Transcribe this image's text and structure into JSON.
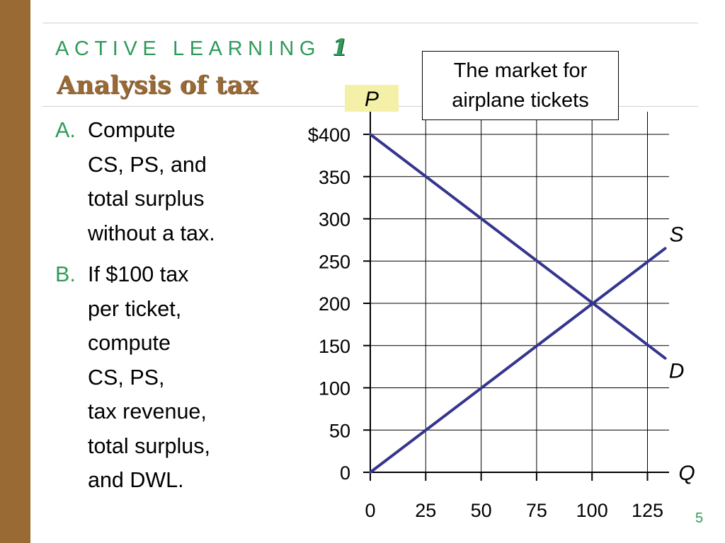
{
  "slide": {
    "kicker_text": "ACTIVE LEARNING",
    "kicker_number": "1",
    "title": "Analysis of tax",
    "page_number": "5"
  },
  "questions": [
    {
      "label": "A.",
      "lines": [
        "Compute",
        "CS, PS, and",
        "total surplus",
        "without a tax."
      ]
    },
    {
      "label": "B.",
      "lines": [
        "If $100 tax",
        "per ticket,",
        "compute",
        "CS, PS,",
        "tax revenue,",
        "total surplus,",
        "and DWL."
      ]
    }
  ],
  "chart_data": {
    "type": "line",
    "title_lines": [
      "The market for",
      "airplane tickets"
    ],
    "ylabel": "P",
    "xlabel": "Q",
    "x_ticks": [
      "0",
      "25",
      "50",
      "75",
      "100",
      "125"
    ],
    "y_ticks": [
      "0",
      "50",
      "100",
      "150",
      "200",
      "250",
      "300",
      "350",
      "$400"
    ],
    "xlim": [
      0,
      125
    ],
    "ylim": [
      0,
      400
    ],
    "grid": true,
    "series": [
      {
        "name": "S",
        "x": [
          0,
          133
        ],
        "y": [
          0,
          265
        ],
        "color": "#35358f"
      },
      {
        "name": "D",
        "x": [
          0,
          133
        ],
        "y": [
          400,
          135
        ],
        "color": "#35358f"
      }
    ],
    "colors": {
      "grid": "#000000",
      "curve": "#35358f",
      "p_label_bg": "#f4f0a8"
    }
  }
}
